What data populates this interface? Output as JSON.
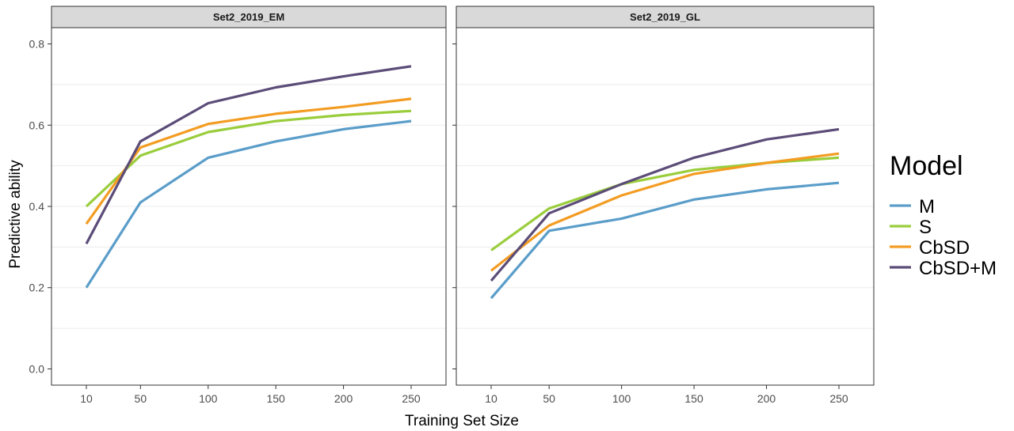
{
  "chart_data": {
    "type": "line",
    "xlabel": "Training Set Size",
    "ylabel": "Predictive ability",
    "x": [
      10,
      50,
      100,
      150,
      200,
      250
    ],
    "x_ticks": [
      "10",
      "50",
      "100",
      "150",
      "200",
      "250"
    ],
    "ylim": [
      -0.04,
      0.84
    ],
    "y_ticks": [
      "0.0",
      "0.2",
      "0.4",
      "0.6",
      "0.8"
    ],
    "grid": "horizontal",
    "legend": {
      "title": "Model",
      "position": "right",
      "entries": [
        "M",
        "S",
        "CbSD",
        "CbSD+M"
      ]
    },
    "colors": {
      "M": "#5a9dc9",
      "S": "#9acd3c",
      "CbSD": "#f39c22",
      "CbSD+M": "#5b4c78"
    },
    "panels": [
      {
        "title": "Set2_2019_EM",
        "series": [
          {
            "name": "M",
            "values": [
              0.2,
              0.41,
              0.52,
              0.56,
              0.59,
              0.61
            ]
          },
          {
            "name": "S",
            "values": [
              0.4,
              0.525,
              0.583,
              0.61,
              0.625,
              0.635
            ]
          },
          {
            "name": "CbSD",
            "values": [
              0.357,
              0.545,
              0.603,
              0.628,
              0.645,
              0.665
            ]
          },
          {
            "name": "CbSD+M",
            "values": [
              0.308,
              0.56,
              0.654,
              0.693,
              0.72,
              0.745
            ]
          }
        ]
      },
      {
        "title": "Set2_2019_GL",
        "series": [
          {
            "name": "M",
            "values": [
              0.174,
              0.34,
              0.37,
              0.417,
              0.442,
              0.458
            ]
          },
          {
            "name": "S",
            "values": [
              0.292,
              0.395,
              0.455,
              0.49,
              0.507,
              0.52
            ]
          },
          {
            "name": "CbSD",
            "values": [
              0.242,
              0.353,
              0.427,
              0.48,
              0.507,
              0.53
            ]
          },
          {
            "name": "CbSD+M",
            "values": [
              0.217,
              0.383,
              0.455,
              0.52,
              0.565,
              0.59
            ]
          }
        ]
      }
    ]
  }
}
